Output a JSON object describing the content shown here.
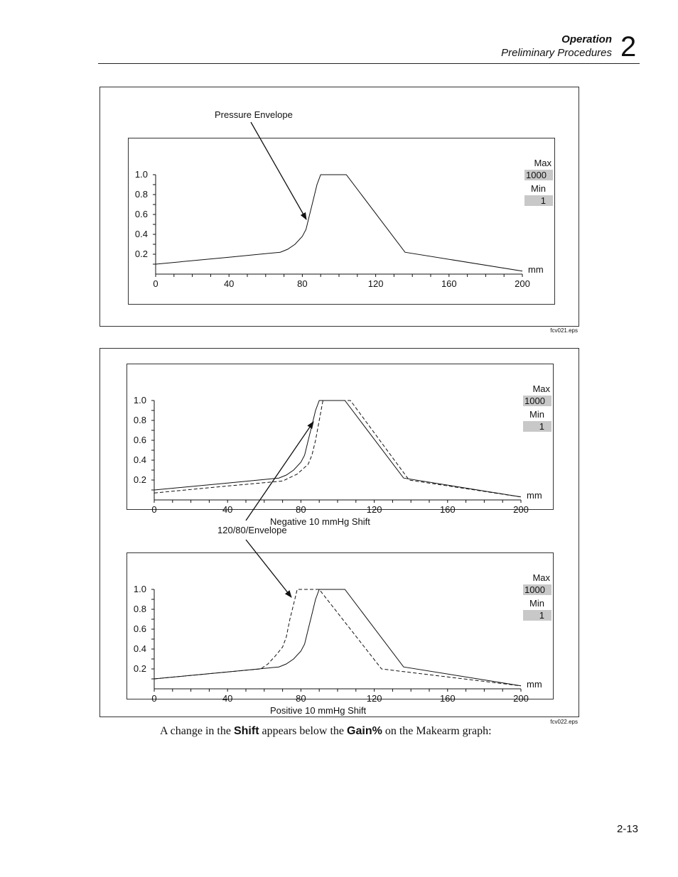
{
  "header": {
    "section": "Operation",
    "subtitle": "Preliminary Procedures",
    "chapter": "2"
  },
  "figure1": {
    "callout": "Pressure Envelope",
    "filename": "fcv021.eps",
    "panel": {
      "max_label": "Max",
      "max_value": "1000",
      "min_label": "Min",
      "min_value": "1",
      "unit": "mm",
      "caption": ""
    }
  },
  "figure2": {
    "callout": "120/80/Envelope",
    "filename": "fcv022.eps",
    "panel_top": {
      "max_label": "Max",
      "max_value": "1000",
      "min_label": "Min",
      "min_value": "1",
      "unit": "mm",
      "caption": "Negative 10 mmHg Shift"
    },
    "panel_bottom": {
      "max_label": "Max",
      "max_value": "1000",
      "min_label": "Min",
      "min_value": "1",
      "unit": "mm",
      "caption": "Positive 10 mmHg Shift"
    }
  },
  "body": {
    "text_1": "A change in the ",
    "shift": "Shift",
    "text_2": " appears below the ",
    "gain": "Gain%",
    "text_3": " on the Makearm graph:"
  },
  "page_number": "2-13",
  "chart_data": [
    {
      "type": "line",
      "xlim": [
        0,
        200
      ],
      "ylim": [
        0,
        1.0
      ],
      "x_ticks": [
        0,
        40,
        80,
        120,
        160,
        200
      ],
      "y_ticks": [
        0.2,
        0.4,
        0.6,
        0.8,
        1.0
      ],
      "series": [
        {
          "style": "solid",
          "points": [
            [
              0,
              0.1
            ],
            [
              40,
              0.17
            ],
            [
              68,
              0.22
            ],
            [
              72,
              0.25
            ],
            [
              76,
              0.3
            ],
            [
              80,
              0.38
            ],
            [
              82,
              0.45
            ],
            [
              84,
              0.6
            ],
            [
              86,
              0.75
            ],
            [
              88,
              0.9
            ],
            [
              90,
              1.0
            ],
            [
              104,
              1.0
            ],
            [
              136,
              0.22
            ],
            [
              200,
              0.03
            ]
          ]
        }
      ]
    },
    {
      "type": "line",
      "xlim": [
        0,
        200
      ],
      "ylim": [
        0,
        1.0
      ],
      "x_ticks": [
        0,
        40,
        80,
        120,
        160,
        200
      ],
      "y_ticks": [
        0.2,
        0.4,
        0.6,
        0.8,
        1.0
      ],
      "series": [
        {
          "style": "solid",
          "points": [
            [
              0,
              0.1
            ],
            [
              40,
              0.17
            ],
            [
              68,
              0.22
            ],
            [
              72,
              0.25
            ],
            [
              76,
              0.3
            ],
            [
              80,
              0.38
            ],
            [
              82,
              0.45
            ],
            [
              84,
              0.6
            ],
            [
              86,
              0.75
            ],
            [
              88,
              0.9
            ],
            [
              90,
              1.0
            ],
            [
              104,
              1.0
            ],
            [
              136,
              0.22
            ],
            [
              200,
              0.03
            ]
          ]
        },
        {
          "style": "dashed",
          "points": [
            [
              0,
              0.07
            ],
            [
              40,
              0.14
            ],
            [
              70,
              0.19
            ],
            [
              78,
              0.26
            ],
            [
              84,
              0.36
            ],
            [
              86,
              0.45
            ],
            [
              88,
              0.6
            ],
            [
              90,
              0.8
            ],
            [
              92,
              1.0
            ],
            [
              107,
              1.0
            ],
            [
              139,
              0.2
            ],
            [
              200,
              0.03
            ]
          ]
        }
      ]
    },
    {
      "type": "line",
      "xlim": [
        0,
        200
      ],
      "ylim": [
        0,
        1.0
      ],
      "x_ticks": [
        0,
        40,
        80,
        120,
        160,
        200
      ],
      "y_ticks": [
        0.2,
        0.4,
        0.6,
        0.8,
        1.0
      ],
      "series": [
        {
          "style": "solid",
          "points": [
            [
              0,
              0.1
            ],
            [
              40,
              0.17
            ],
            [
              68,
              0.22
            ],
            [
              72,
              0.25
            ],
            [
              76,
              0.3
            ],
            [
              80,
              0.38
            ],
            [
              82,
              0.45
            ],
            [
              84,
              0.6
            ],
            [
              86,
              0.75
            ],
            [
              88,
              0.9
            ],
            [
              90,
              1.0
            ],
            [
              104,
              1.0
            ],
            [
              136,
              0.22
            ],
            [
              200,
              0.03
            ]
          ]
        },
        {
          "style": "dashed",
          "points": [
            [
              0,
              0.1
            ],
            [
              40,
              0.17
            ],
            [
              58,
              0.2
            ],
            [
              62,
              0.25
            ],
            [
              66,
              0.33
            ],
            [
              70,
              0.42
            ],
            [
              72,
              0.52
            ],
            [
              74,
              0.7
            ],
            [
              76,
              0.85
            ],
            [
              78,
              1.0
            ],
            [
              90,
              1.0
            ],
            [
              124,
              0.2
            ],
            [
              200,
              0.03
            ]
          ]
        }
      ]
    }
  ]
}
